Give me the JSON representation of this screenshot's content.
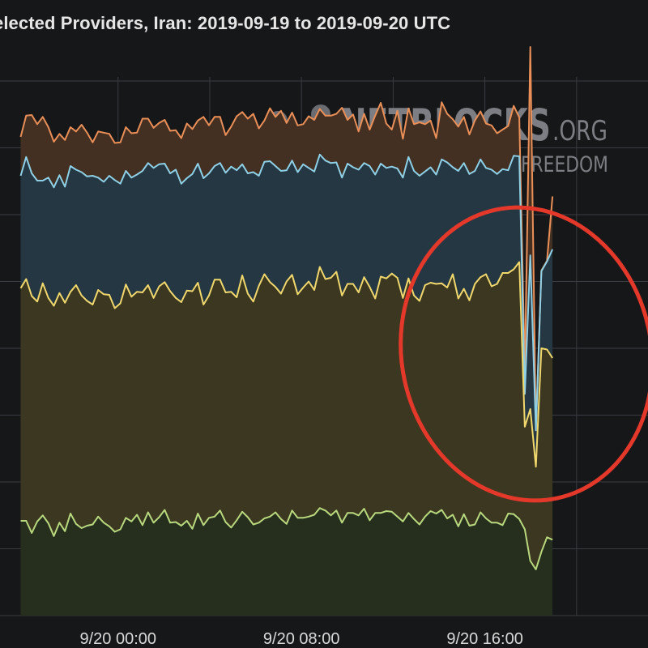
{
  "chart_title": "elected Providers, Iran: 2019-09-19 to 2019-09-20 UTC",
  "watermark": {
    "brand": "NETBLOCKS",
    "tld": ".ORG",
    "tagline": "MAPPING INTERNET FREEDOM"
  },
  "colors": {
    "background": "#161719",
    "grid": "#3a3c41",
    "orange": "#ea8f57",
    "blue": "#8ed0e6",
    "yellow": "#f1d86c",
    "green": "#b9d97e",
    "highlight_circle": "#e3382a"
  },
  "chart_data": {
    "type": "area",
    "title": "elected Providers, Iran: 2019-09-19 to 2019-09-20 UTC",
    "x_tick_labels": [
      "9/20 00:00",
      "9/20 08:00",
      "9/20 16:00"
    ],
    "x_tick_hours": [
      0,
      8,
      16
    ],
    "x_range_hours": [
      -5.15,
      21.95
    ],
    "y_range": [
      0,
      100
    ],
    "grid": true,
    "stacked": true,
    "series": [
      {
        "color": "#b9d97e",
        "values": [
          15.6,
          15.6,
          13.6,
          15.5,
          16.5,
          15.2,
          13.1,
          15.3,
          13.9,
          16.8,
          15.1,
          14.4,
          14.8,
          15.0,
          16.3,
          15.3,
          14.7,
          13.8,
          14.2,
          16.1,
          15.5,
          16.6,
          14.9,
          17.0,
          15.3,
          16.2,
          17.4,
          15.3,
          15.4,
          14.8,
          15.6,
          14.3,
          16.8,
          14.9,
          16.1,
          16.3,
          17.3,
          15.4,
          14.5,
          15.7,
          17.1,
          16.2,
          15.0,
          15.3,
          16.0,
          16.3,
          17.0,
          15.9,
          15.1,
          17.3,
          16.1,
          16.1,
          16.3,
          16.6,
          17.7,
          17.3,
          16.5,
          17.3,
          15.3,
          16.9,
          16.9,
          16.5,
          17.6,
          15.7,
          16.9,
          16.9,
          17.2,
          17.1,
          16.3,
          15.5,
          16.9,
          15.9,
          15.0,
          16.3,
          17.2,
          16.8,
          17.4,
          16.0,
          16.6,
          14.7,
          16.7,
          14.8,
          15.0,
          17.0,
          16.0,
          15.3,
          15.3,
          14.9,
          16.8,
          16.7,
          15.9,
          14.2,
          9.0,
          7.6,
          10.5,
          12.9,
          12.5
        ]
      },
      {
        "color": "#f1d86c",
        "values": [
          38.3,
          39.8,
          39.0,
          36.2,
          38.2,
          37.1,
          37.9,
          37.8,
          37.6,
          36.5,
          39.3,
          38.3,
          37.0,
          36.2,
          37.3,
          37.6,
          38.1,
          36.8,
          37.2,
          38.4,
          37.0,
          36.7,
          38.3,
          37.4,
          37.0,
          38.0,
          37.5,
          38.1,
          36.9,
          36.8,
          37.9,
          39.1,
          38.0,
          36.3,
          36.6,
          39.0,
          38.0,
          37.8,
          38.8,
          36.7,
          38.9,
          36.8,
          36.7,
          39.0,
          40.2,
          38.6,
          37.1,
          37.1,
          39.9,
          38.8,
          36.8,
          37.9,
          38.7,
          37.0,
          39.7,
          38.1,
          39.1,
          39.3,
          37.4,
          37.7,
          37.7,
          36.7,
          38.1,
          38.4,
          35.3,
          38.9,
          38.3,
          39.2,
          39.3,
          36.8,
          38.6,
          36.8,
          36.8,
          38.1,
          37.6,
          37.8,
          37.3,
          38.0,
          39.6,
          37.5,
          37.1,
          37.1,
          39.6,
          38.7,
          40.2,
          38.9,
          39.3,
          41.5,
          39.6,
          40.3,
          42.3,
          16.9,
          25.0,
          16.9,
          33.5,
          30.9,
          29.9
        ]
      },
      {
        "color": "#8ed0e6",
        "values": [
          18.5,
          20.1,
          20.2,
          19.9,
          16.9,
          19.8,
          19.5,
          19.4,
          19.1,
          20.7,
          19.0,
          20.3,
          20.5,
          21.2,
          18.5,
          18.5,
          19.6,
          21.1,
          19.7,
          18.7,
          19.6,
          19.3,
          20.0,
          20.1,
          21.4,
          20.1,
          19.5,
          19.4,
          21.1,
          19.5,
          18.5,
          19.3,
          19.6,
          20.8,
          20.1,
          18.7,
          19.2,
          19.7,
          20.6,
          20.9,
          18.3,
          19.8,
          21.3,
          18.1,
          18.5,
          19.9,
          19.9,
          20.2,
          18.3,
          18.8,
          20.1,
          20.3,
          18.7,
          19.5,
          18.5,
          19.5,
          18.9,
          18.0,
          19.4,
          19.8,
          19.2,
          20.2,
          18.8,
          19.9,
          20.4,
          18.6,
          18.2,
          17.6,
          18.0,
          19.8,
          20.0,
          20.5,
          20.6,
          18.7,
          19.0,
          18.0,
          20.4,
          20.6,
          17.6,
          21.0,
          20.7,
          20.8,
          18.6,
          19.4,
          17.5,
          19.2,
          18.1,
          17.1,
          16.9,
          18.7,
          17.4,
          5.4,
          25.3,
          6.0,
          12.7,
          14.5,
          17.9
        ]
      },
      {
        "color": "#ea8f57",
        "values": [
          6.4,
          6.8,
          9.6,
          9.3,
          10.5,
          8.3,
          7.5,
          6.8,
          7.7,
          6.4,
          6.3,
          7.8,
          7.2,
          5.5,
          7.6,
          8.1,
          6.9,
          6.1,
          6.8,
          7.2,
          7.3,
          6.9,
          8.6,
          7.3,
          6.6,
          6.8,
          7.2,
          7.0,
          6.5,
          7.5,
          9.0,
          7.4,
          7.1,
          10.1,
          7.9,
          8.1,
          7.6,
          6.2,
          6.6,
          8.9,
          8.6,
          9.0,
          9.6,
          7.8,
          6.8,
          8.7,
          8.1,
          9.9,
          7.8,
          7.9,
          7.7,
          6.6,
          8.5,
          8.5,
          7.5,
          7.4,
          7.8,
          8.0,
          11.5,
          7.2,
          8.7,
          6.3,
          8.1,
          6.0,
          9.7,
          10.0,
          7.3,
          6.1,
          9.5,
          6.4,
          8.0,
          7.7,
          8.8,
          7.8,
          7.7,
          6.0,
          9.4,
          8.0,
          7.9,
          7.3,
          7.6,
          6.5,
          8.3,
          7.9,
          7.3,
          7.3,
          6.7,
          6.5,
          7.3,
          8.2,
          6.4,
          3.5,
          34.3,
          0.2,
          0.1,
          0.1,
          8.7
        ]
      }
    ]
  }
}
